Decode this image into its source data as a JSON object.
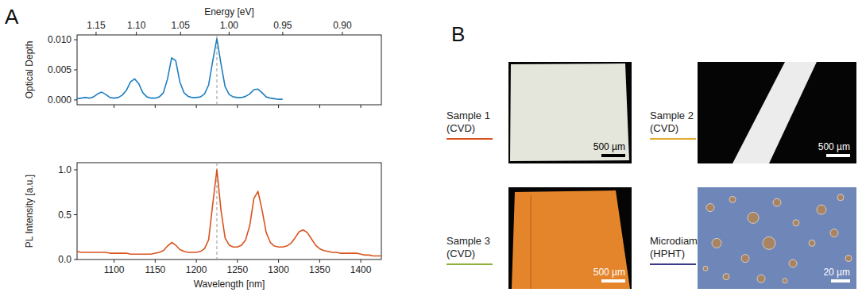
{
  "chart_data": [
    {
      "type": "line",
      "panel": "A",
      "y_label": "Optical Depth",
      "x2_label": "Energy [eV]",
      "xlim": [
        1055,
        1425
      ],
      "xticks": [
        1100,
        1150,
        1200,
        1250,
        1300,
        1350,
        1400
      ],
      "x2ticks": [
        1.15,
        {
          "value": 1.1,
          "label": "1.10"
        },
        1.05,
        {
          "value": 1.0,
          "label": "1.00"
        },
        0.95,
        {
          "value": 0.9,
          "label": "0.90"
        }
      ],
      "ylim": [
        -0.0008,
        0.0108
      ],
      "yticks": [
        {
          "value": 0,
          "label": "0.000"
        },
        0.005,
        {
          "value": 0.01,
          "label": "0.010"
        }
      ],
      "tick_labels": "y",
      "reference_line": 1225,
      "x": [
        1055,
        1060,
        1065,
        1070,
        1075,
        1080,
        1085,
        1090,
        1095,
        1100,
        1105,
        1110,
        1115,
        1120,
        1125,
        1130,
        1135,
        1140,
        1145,
        1150,
        1155,
        1160,
        1165,
        1170,
        1175,
        1180,
        1185,
        1190,
        1195,
        1200,
        1205,
        1210,
        1215,
        1220,
        1225,
        1230,
        1235,
        1240,
        1245,
        1250,
        1255,
        1260,
        1265,
        1270,
        1275,
        1280,
        1285,
        1290,
        1295,
        1300,
        1305
      ],
      "series": [
        {
          "color": "#1f7fc0",
          "values": [
            0.0002,
            0.0003,
            0.0004,
            0.0003,
            0.0005,
            0.001,
            0.0013,
            0.0009,
            0.0004,
            0.0003,
            0.0004,
            0.0008,
            0.0016,
            0.003,
            0.0035,
            0.0027,
            0.0012,
            0.0005,
            0.0003,
            0.0003,
            0.0005,
            0.0012,
            0.0035,
            0.007,
            0.0065,
            0.003,
            0.0012,
            0.0006,
            0.0004,
            0.0004,
            0.0005,
            0.001,
            0.0025,
            0.0065,
            0.0102,
            0.006,
            0.0022,
            0.0009,
            0.0005,
            0.0004,
            0.0004,
            0.0006,
            0.001,
            0.0017,
            0.0018,
            0.0012,
            0.0005,
            0.0003,
            0.0002,
            0.0001,
            0.0001
          ]
        }
      ]
    },
    {
      "type": "line",
      "x_label": "Wavelength [nm]",
      "y_label": "PL Intensity [a.u.]",
      "xlim": [
        1055,
        1425
      ],
      "xticks": [
        1100,
        1150,
        1200,
        1250,
        1300,
        1350,
        1400
      ],
      "ylim": [
        0,
        1.08
      ],
      "yticks": [
        {
          "value": 0,
          "label": "0.0"
        },
        0.5,
        {
          "value": 1,
          "label": "1.0"
        }
      ],
      "reference_line": 1225,
      "x": [
        1055,
        1060,
        1065,
        1070,
        1075,
        1080,
        1085,
        1090,
        1095,
        1100,
        1105,
        1110,
        1115,
        1120,
        1125,
        1130,
        1135,
        1140,
        1145,
        1150,
        1155,
        1160,
        1165,
        1170,
        1175,
        1180,
        1185,
        1190,
        1195,
        1200,
        1205,
        1210,
        1215,
        1220,
        1225,
        1230,
        1235,
        1240,
        1245,
        1250,
        1255,
        1260,
        1265,
        1270,
        1275,
        1280,
        1285,
        1290,
        1295,
        1300,
        1305,
        1310,
        1315,
        1320,
        1325,
        1330,
        1335,
        1340,
        1345,
        1350,
        1355,
        1360,
        1365,
        1370,
        1375,
        1380,
        1385,
        1390,
        1395,
        1400,
        1405,
        1410,
        1415,
        1420,
        1425
      ],
      "series": [
        {
          "color": "#d9531e",
          "values": [
            0.09,
            0.08,
            0.08,
            0.08,
            0.08,
            0.08,
            0.08,
            0.08,
            0.07,
            0.07,
            0.07,
            0.07,
            0.07,
            0.06,
            0.06,
            0.06,
            0.06,
            0.06,
            0.06,
            0.07,
            0.08,
            0.1,
            0.15,
            0.19,
            0.16,
            0.11,
            0.09,
            0.08,
            0.08,
            0.08,
            0.09,
            0.12,
            0.22,
            0.62,
            1.0,
            0.55,
            0.24,
            0.16,
            0.14,
            0.14,
            0.16,
            0.22,
            0.38,
            0.68,
            0.76,
            0.55,
            0.3,
            0.19,
            0.15,
            0.14,
            0.14,
            0.15,
            0.18,
            0.24,
            0.31,
            0.33,
            0.3,
            0.23,
            0.16,
            0.12,
            0.1,
            0.09,
            0.08,
            0.08,
            0.07,
            0.07,
            0.07,
            0.07,
            0.07,
            0.06,
            0.05,
            0.05,
            0.04,
            0.04,
            0.04
          ]
        }
      ]
    }
  ],
  "panel_b": {
    "label": "B",
    "samples": [
      {
        "name": "Sample 1",
        "method": "(CVD)",
        "color": "#d9531e",
        "scale_bar": "500 µm"
      },
      {
        "name": "Sample 2",
        "method": "(CVD)",
        "color": "#e3a92f",
        "scale_bar": "500 µm"
      },
      {
        "name": "Sample 3",
        "method": "(CVD)",
        "color": "#8fae3e",
        "scale_bar": "500 µm"
      },
      {
        "name": "Microdiamonds",
        "method": "(HPHT)",
        "color": "#3a3b8c",
        "scale_bar": "20 µm"
      }
    ]
  }
}
